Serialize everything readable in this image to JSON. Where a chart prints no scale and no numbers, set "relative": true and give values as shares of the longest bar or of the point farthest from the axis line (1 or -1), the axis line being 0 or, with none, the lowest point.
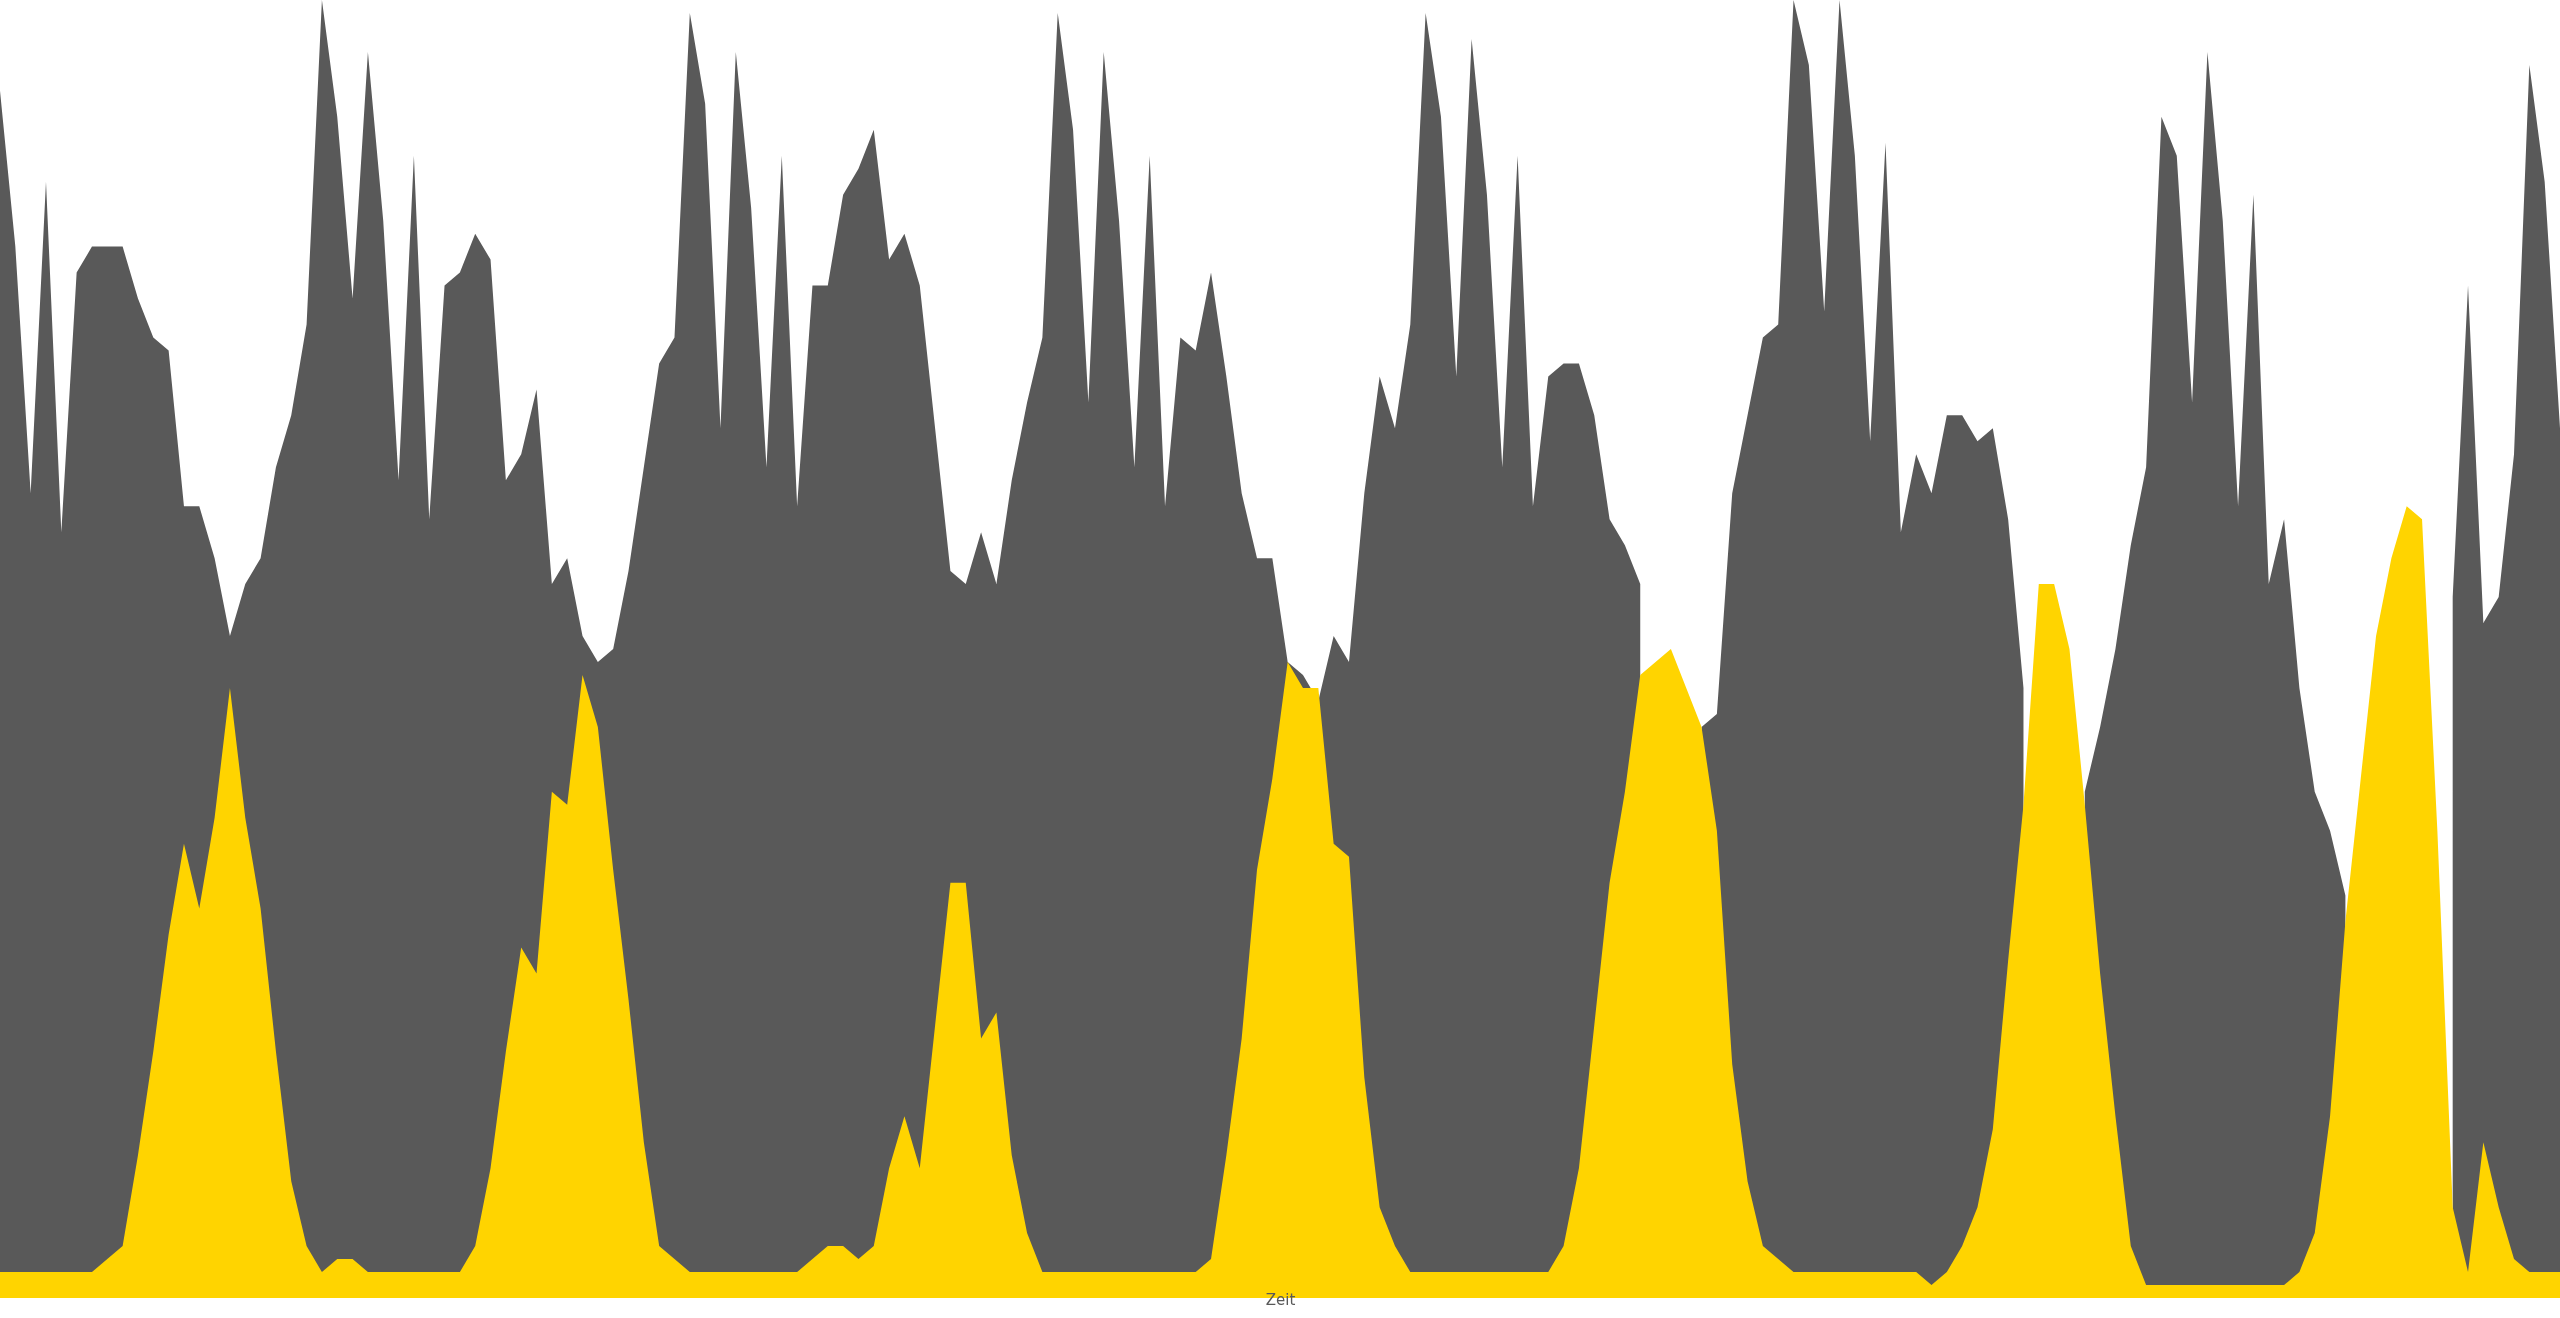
{
  "chart_data": {
    "type": "area",
    "relative": true,
    "xlabel": "Zeit",
    "categories": [
      null,
      null,
      null,
      null,
      null,
      null,
      null,
      null,
      null,
      null,
      null,
      null,
      null,
      null,
      null,
      null,
      null,
      null,
      null,
      null,
      null,
      null,
      null,
      null,
      null,
      null,
      null,
      null,
      null,
      null,
      null,
      null,
      null,
      null,
      null,
      null,
      null,
      null,
      null,
      null,
      null,
      null,
      null,
      null,
      null,
      null,
      null,
      null,
      null,
      null,
      null,
      null,
      null,
      null,
      null,
      null,
      null,
      null,
      null,
      null,
      null,
      null,
      null,
      null,
      null,
      null,
      null,
      null,
      null,
      null,
      null,
      null,
      null,
      null,
      null,
      null,
      null,
      null,
      null,
      null,
      null,
      null,
      null,
      null,
      null,
      null,
      null,
      null,
      null,
      null,
      null,
      null,
      null,
      null,
      null,
      null,
      null,
      null,
      null,
      null,
      null,
      null,
      null,
      null,
      null,
      null,
      null,
      null,
      null,
      null,
      null,
      null,
      null,
      null,
      null,
      null,
      null,
      null,
      null,
      null,
      null,
      null,
      null,
      null,
      null,
      null,
      null,
      null,
      null,
      null,
      null,
      null,
      null,
      null,
      null,
      null,
      null,
      null,
      null,
      null,
      null,
      null,
      null,
      null,
      null,
      null,
      null,
      null,
      null,
      null,
      null,
      null,
      null,
      null,
      null,
      null,
      null,
      null,
      null,
      null,
      null,
      null,
      null,
      null,
      null,
      null,
      null,
      null
    ],
    "series": [
      {
        "color": "#595959",
        "values": [
          0.93,
          0.81,
          0.62,
          0.86,
          0.59,
          0.79,
          0.81,
          0.81,
          0.81,
          0.77,
          0.74,
          0.73,
          0.61,
          0.61,
          0.57,
          0.51,
          0.55,
          0.57,
          0.64,
          0.68,
          0.75,
          1,
          0.91,
          0.77,
          0.96,
          0.83,
          0.63,
          0.88,
          0.6,
          0.78,
          0.79,
          0.82,
          0.8,
          0.63,
          0.65,
          0.7,
          0.55,
          0.57,
          0.51,
          0.49,
          0.5,
          0.56,
          0.64,
          0.72,
          0.74,
          0.99,
          0.92,
          0.67,
          0.96,
          0.84,
          0.64,
          0.88,
          0.61,
          0.78,
          0.78,
          0.85,
          0.87,
          0.9,
          0.8,
          0.82,
          0.78,
          0.67,
          0.56,
          0.55,
          0.59,
          0.55,
          0.63,
          0.69,
          0.74,
          0.99,
          0.9,
          0.69,
          0.96,
          0.83,
          0.64,
          0.88,
          0.61,
          0.74,
          0.73,
          0.79,
          0.71,
          0.62,
          0.57,
          0.57,
          0.49,
          0.48,
          0.46,
          0.51,
          0.49,
          0.62,
          0.71,
          0.67,
          0.75,
          0.99,
          0.91,
          0.71,
          0.97,
          0.85,
          0.64,
          0.88,
          0.61,
          0.71,
          0.72,
          0.72,
          0.68,
          0.6,
          0.58,
          0.55,
          null,
          null,
          null,
          0.44,
          0.45,
          0.62,
          0.68,
          0.74,
          0.75,
          1,
          0.95,
          0.76,
          1,
          0.88,
          0.66,
          0.89,
          0.59,
          0.65,
          0.62,
          0.68,
          0.68,
          0.66,
          0.67,
          0.6,
          0.47,
          null,
          null,
          null,
          0.39,
          0.44,
          0.5,
          0.58,
          0.64,
          0.91,
          0.88,
          0.69,
          0.96,
          0.83,
          0.61,
          0.85,
          0.55,
          0.6,
          0.47,
          0.39,
          0.36,
          0.31,
          null,
          null,
          null,
          null,
          null,
          null,
          0.54,
          0.78,
          0.52,
          0.54,
          0.65,
          0.95,
          0.86,
          0.67
        ]
      },
      {
        "color": "#ffd400",
        "values": [
          0.02,
          0.02,
          0.02,
          0.02,
          0.02,
          0.02,
          0.02,
          0.03,
          0.04,
          0.11,
          0.19,
          0.28,
          0.35,
          0.3,
          0.37,
          0.47,
          0.37,
          0.3,
          0.19,
          0.09,
          0.04,
          0.02,
          0.03,
          0.03,
          0.02,
          0.02,
          0.02,
          0.02,
          0.02,
          0.02,
          0.02,
          0.04,
          0.1,
          0.19,
          0.27,
          0.25,
          0.39,
          0.38,
          0.48,
          0.44,
          0.33,
          0.23,
          0.12,
          0.04,
          0.03,
          0.02,
          0.02,
          0.02,
          0.02,
          0.02,
          0.02,
          0.02,
          0.02,
          0.03,
          0.04,
          0.04,
          0.03,
          0.04,
          0.1,
          0.14,
          0.1,
          0.21,
          0.32,
          0.32,
          0.2,
          0.22,
          0.11,
          0.05,
          0.02,
          0.02,
          0.02,
          0.02,
          0.02,
          0.02,
          0.02,
          0.02,
          0.02,
          0.02,
          0.02,
          0.03,
          0.11,
          0.2,
          0.33,
          0.4,
          0.49,
          0.47,
          0.47,
          0.35,
          0.34,
          0.17,
          0.07,
          0.04,
          0.02,
          0.02,
          0.02,
          0.02,
          0.02,
          0.02,
          0.02,
          0.02,
          0.02,
          0.02,
          0.04,
          0.1,
          0.21,
          0.32,
          0.39,
          0.48,
          0.49,
          0.5,
          0.47,
          0.44,
          0.36,
          0.18,
          0.09,
          0.04,
          0.03,
          0.02,
          0.02,
          0.02,
          0.02,
          0.02,
          0.02,
          0.02,
          0.02,
          0.02,
          0.01,
          0.02,
          0.04,
          0.07,
          0.13,
          0.26,
          0.38,
          0.55,
          0.55,
          0.5,
          0.38,
          0.25,
          0.14,
          0.04,
          0.01,
          0.01,
          0.01,
          0.01,
          0.01,
          0.01,
          0.01,
          0.01,
          0.01,
          0.01,
          0.02,
          0.05,
          0.14,
          0.29,
          0.4,
          0.51,
          0.57,
          0.61,
          0.6,
          0.36,
          0.07,
          0.02,
          0.12,
          0.07,
          0.03,
          0.02,
          0.02,
          0.02
        ]
      }
    ]
  }
}
